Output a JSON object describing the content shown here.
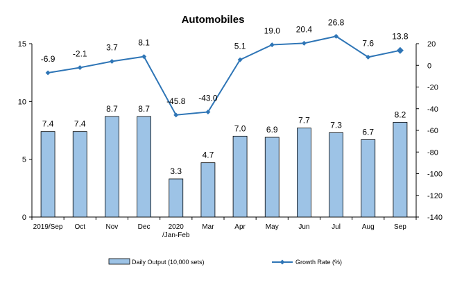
{
  "chart_data": {
    "type": "bar+line",
    "title": "Automobiles",
    "categories": [
      "2019/Sep",
      "Oct",
      "Nov",
      "Dec",
      "2020\n/Jan-Feb",
      "Mar",
      "Apr",
      "May",
      "Jun",
      "Jul",
      "Aug",
      "Sep"
    ],
    "series": [
      {
        "name": "Daily Output (10,000 sets)",
        "type": "bar",
        "axis": "left",
        "color": "#9DC3E6",
        "values": [
          7.4,
          7.4,
          8.7,
          8.7,
          3.3,
          4.7,
          7.0,
          6.9,
          7.7,
          7.3,
          6.7,
          8.2
        ]
      },
      {
        "name": "Growth Rate (%)",
        "type": "line",
        "axis": "right",
        "color": "#2E75B6",
        "values": [
          -6.9,
          -2.1,
          3.7,
          8.1,
          -45.8,
          -43.0,
          5.1,
          19.0,
          20.4,
          26.8,
          7.6,
          13.8
        ]
      }
    ],
    "left_axis": {
      "min": 0,
      "max": 15,
      "ticks": [
        0,
        5,
        10,
        15
      ]
    },
    "right_axis": {
      "min": -140,
      "max": 20,
      "ticks": [
        20,
        0,
        -20,
        -40,
        -60,
        -80,
        -100,
        -120,
        -140
      ]
    },
    "legend": "bottom",
    "grid": false
  }
}
